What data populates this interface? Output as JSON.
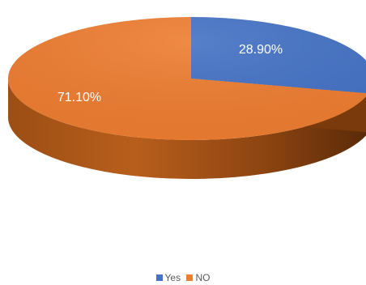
{
  "chart_data": {
    "type": "pie",
    "title": "",
    "categories": [
      "Yes",
      "NO"
    ],
    "values": [
      28.9,
      71.1
    ],
    "data_labels": [
      "28.90%",
      "71.10%"
    ],
    "colors": [
      "#4472C4",
      "#ED7D31"
    ],
    "legend_position": "bottom",
    "style": "3d"
  },
  "legend": {
    "items": [
      {
        "label": "Yes",
        "color": "#4472C4"
      },
      {
        "label": "NO",
        "color": "#ED7D31"
      }
    ]
  }
}
